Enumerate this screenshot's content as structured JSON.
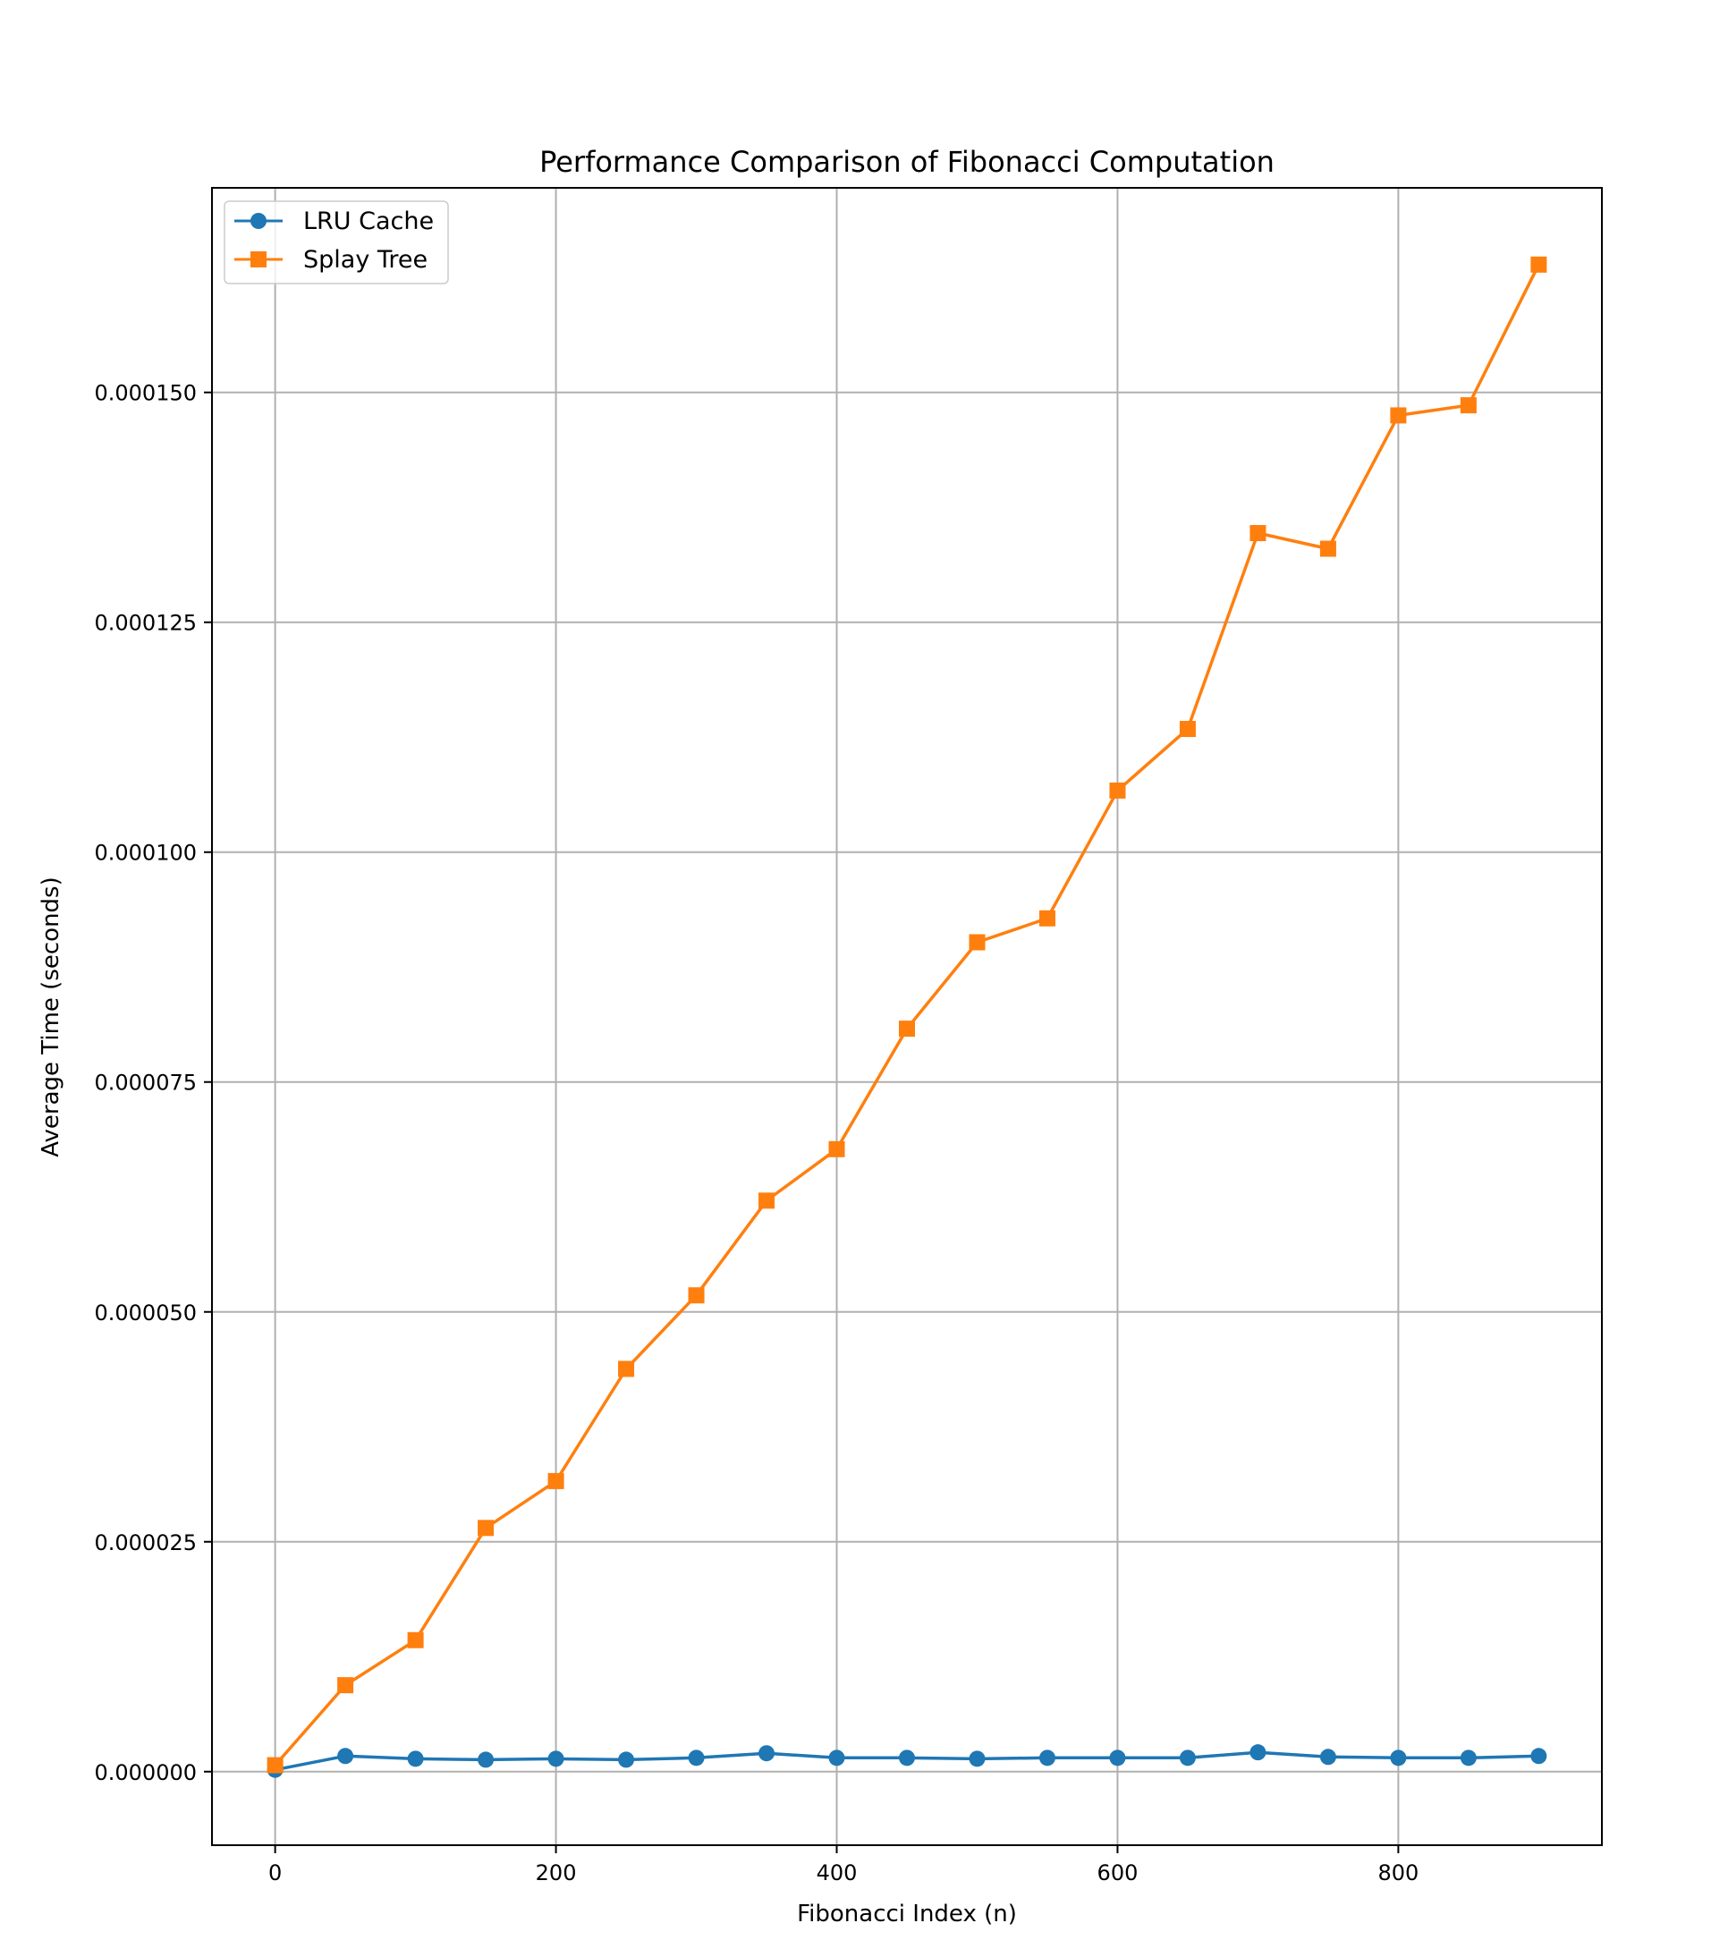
{
  "chart_data": {
    "type": "line",
    "title": "Performance Comparison of Fibonacci Computation",
    "xlabel": "Fibonacci Index (n)",
    "ylabel": "Average Time (seconds)",
    "xlim": [
      -45,
      945
    ],
    "ylim": [
      -8e-06,
      0.00017225
    ],
    "xticks": [
      0,
      200,
      400,
      600,
      800
    ],
    "xtick_labels": [
      "0",
      "200",
      "400",
      "600",
      "800"
    ],
    "yticks": [
      0,
      2.5e-05,
      5e-05,
      7.5e-05,
      0.0001,
      0.000125,
      0.00015
    ],
    "ytick_labels": [
      "0.000000",
      "0.000025",
      "0.000050",
      "0.000075",
      "0.000100",
      "0.000125",
      "0.000150"
    ],
    "grid": true,
    "legend_position": "top-left",
    "x": [
      0,
      50,
      100,
      150,
      200,
      250,
      300,
      350,
      400,
      450,
      500,
      550,
      600,
      650,
      700,
      750,
      800,
      850,
      900
    ],
    "series": [
      {
        "name": "LRU Cache",
        "color": "#1f77b4",
        "marker": "circle",
        "values": [
          2e-07,
          1.7e-06,
          1.4e-06,
          1.3e-06,
          1.4e-06,
          1.3e-06,
          1.5e-06,
          2e-06,
          1.5e-06,
          1.5e-06,
          1.4e-06,
          1.5e-06,
          1.5e-06,
          1.5e-06,
          2.1e-06,
          1.6e-06,
          1.5e-06,
          1.5e-06,
          1.7e-06
        ]
      },
      {
        "name": "Splay Tree",
        "color": "#ff7f0e",
        "marker": "square",
        "values": [
          7e-07,
          9.4e-06,
          1.43e-05,
          2.65e-05,
          3.16e-05,
          4.38e-05,
          5.18e-05,
          6.21e-05,
          6.77e-05,
          8.08e-05,
          9.02e-05,
          9.28e-05,
          0.0001067,
          0.0001134,
          0.0001347,
          0.000133,
          0.0001475,
          0.0001486,
          0.0001639
        ]
      }
    ]
  }
}
